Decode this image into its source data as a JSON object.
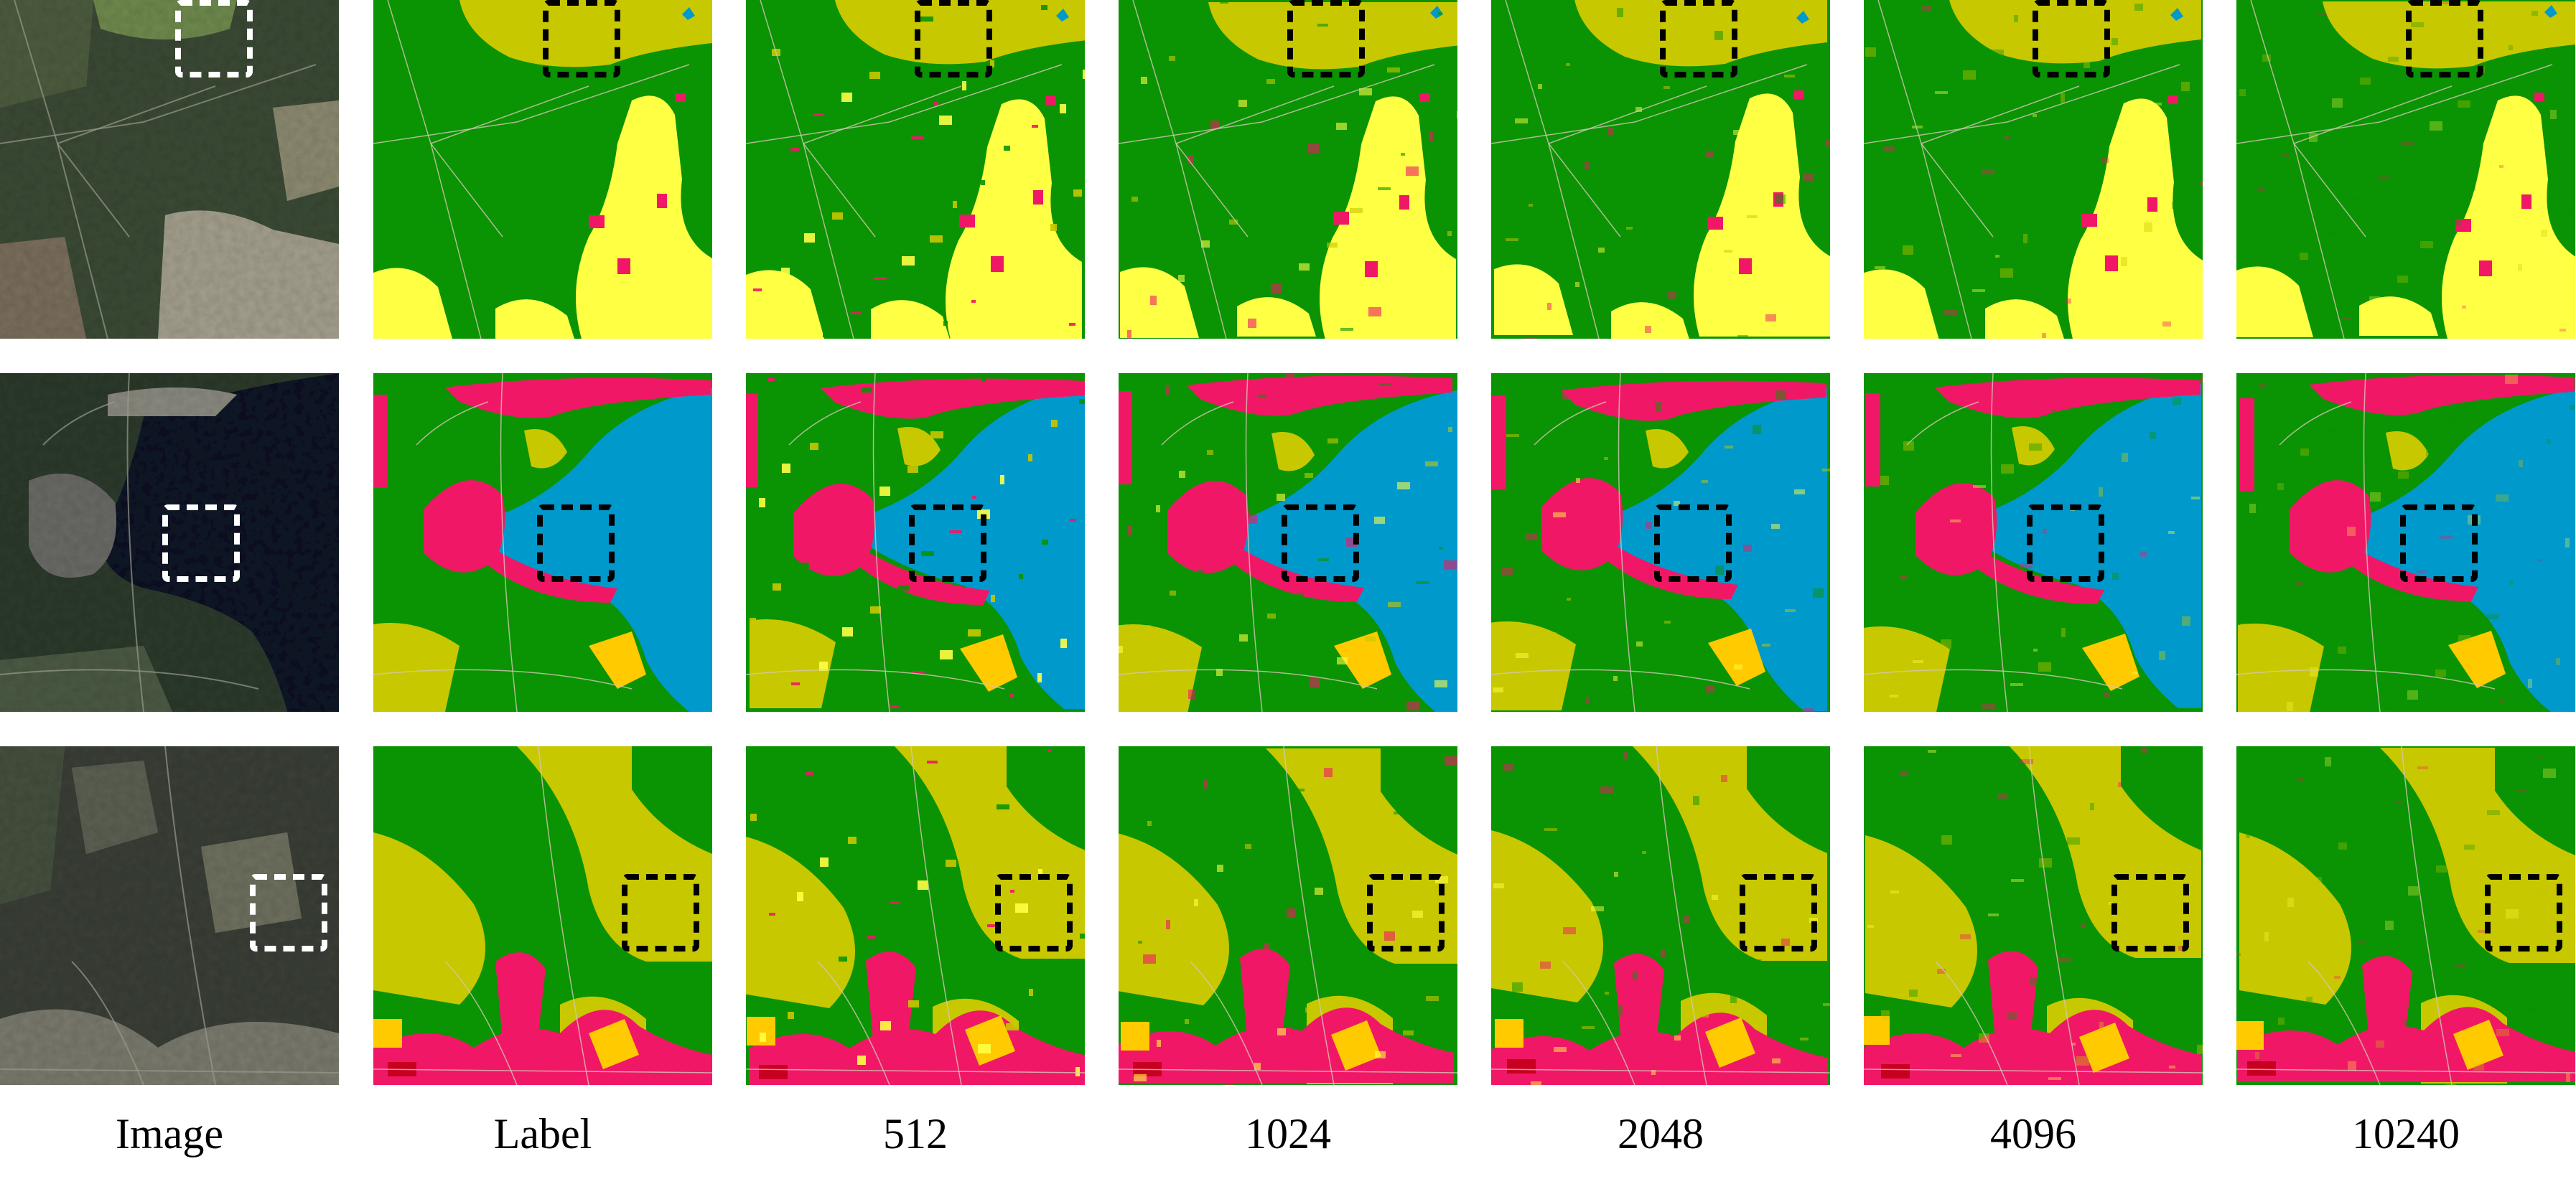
{
  "columns": [
    {
      "caption": "Image"
    },
    {
      "caption": "Label"
    },
    {
      "caption": "512"
    },
    {
      "caption": "1024"
    },
    {
      "caption": "2048"
    },
    {
      "caption": "4096"
    },
    {
      "caption": "10240"
    }
  ],
  "rows": [
    {
      "scene": "forest-and-fields"
    },
    {
      "scene": "lake-shore-town"
    },
    {
      "scene": "forest-village"
    }
  ],
  "palette": {
    "forest": "#0a9302",
    "meadow": "#c7c800",
    "cropland": "#ffff44",
    "orange": "#ffca00",
    "urban": "#f01866",
    "dense_urban": "#c80020",
    "water": "#0099cc",
    "highlight_box_on_image": "#ffffff",
    "highlight_box_on_maps": "#000000"
  }
}
